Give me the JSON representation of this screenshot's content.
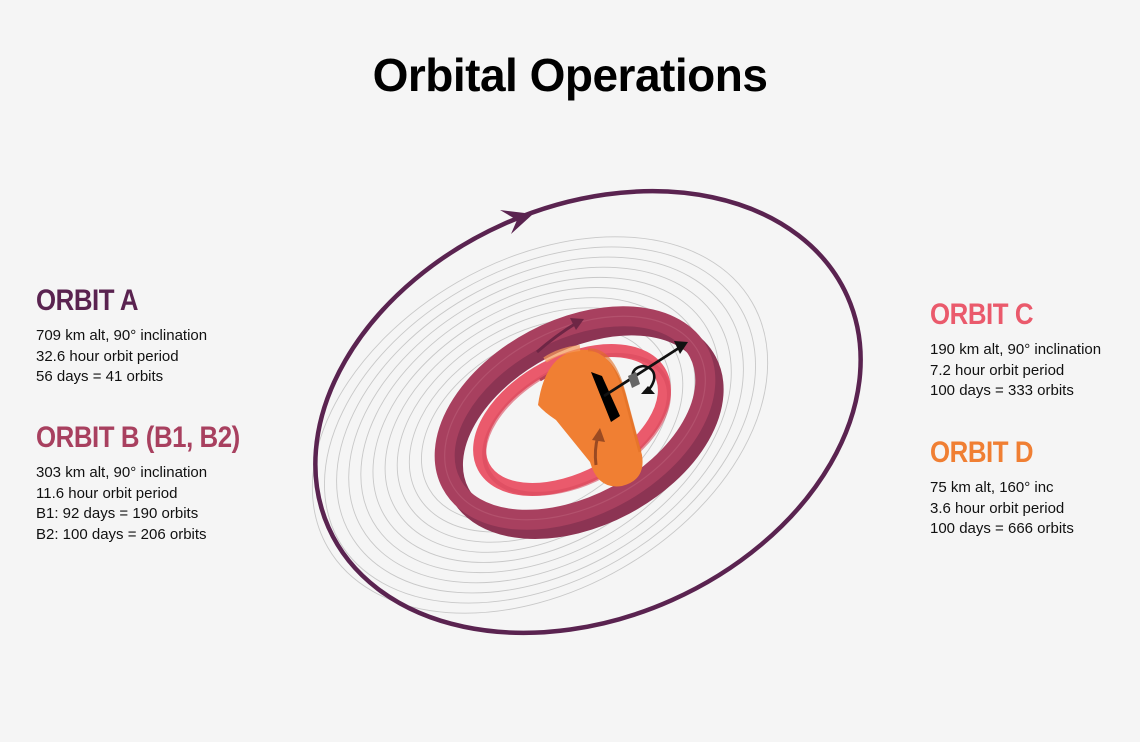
{
  "title": "Orbital Operations",
  "colors": {
    "background": "#f5f5f5",
    "orbit_a": "#5a2350",
    "orbit_b": "#a8405f",
    "orbit_c": "#ea5a6c",
    "orbit_d": "#f07f33",
    "rings": "#c8c8c8",
    "arrow": "#111111"
  },
  "orbits": [
    {
      "id": "a",
      "heading": "ORBIT A",
      "color": "#5a2350",
      "lines": [
        "709 km alt, 90° inclination",
        "32.6 hour orbit period",
        "56 days = 41 orbits"
      ]
    },
    {
      "id": "b",
      "heading": "ORBIT B (B1, B2)",
      "color": "#a8405f",
      "lines": [
        "303 km alt, 90° inclination",
        "11.6 hour orbit period",
        "B1: 92 days = 190 orbits",
        "B2: 100 days = 206 orbits"
      ]
    },
    {
      "id": "c",
      "heading": "ORBIT C",
      "color": "#ea5a6c",
      "lines": [
        "190 km alt, 90° inclination",
        "7.2 hour orbit period",
        "100 days = 333 orbits"
      ]
    },
    {
      "id": "d",
      "heading": "ORBIT D",
      "color": "#f07f33",
      "lines": [
        "75 km alt, 160° inc",
        "3.6 hour orbit period",
        "100 days = 666 orbits"
      ]
    }
  ]
}
